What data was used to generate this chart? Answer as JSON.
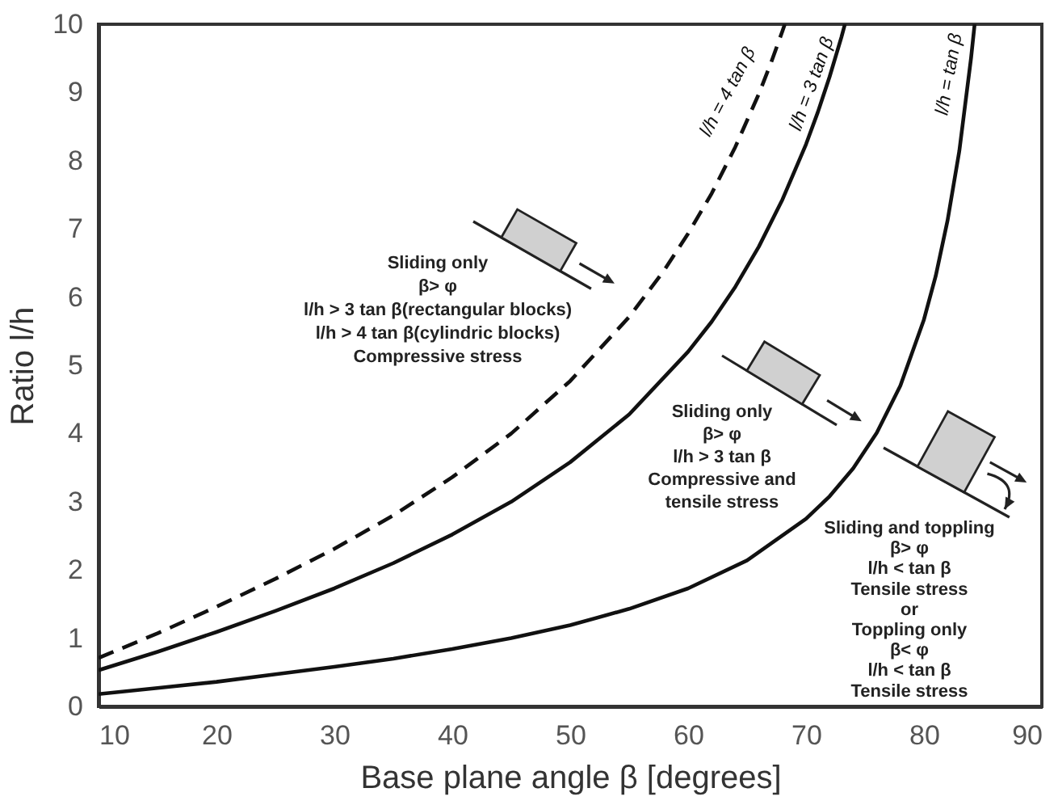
{
  "chart_data": {
    "type": "line",
    "xlabel": "Base plane angle β [degrees]",
    "ylabel": "Ratio l/h",
    "xlim": [
      10,
      90
    ],
    "ylim": [
      0,
      10
    ],
    "xticks": [
      10,
      20,
      30,
      40,
      50,
      60,
      70,
      80,
      90
    ],
    "yticks": [
      0,
      1,
      2,
      3,
      4,
      5,
      6,
      7,
      8,
      9,
      10
    ],
    "grid": false,
    "marker": "none",
    "series": [
      {
        "name": "l/h = tan β",
        "color": "#111111",
        "line_style": "solid",
        "x": [
          10,
          15,
          20,
          25,
          30,
          35,
          40,
          45,
          50,
          55,
          60,
          65,
          70,
          72,
          74,
          76,
          78,
          80,
          81,
          82,
          83,
          84,
          84.3
        ],
        "values": [
          0.18,
          0.27,
          0.36,
          0.47,
          0.58,
          0.7,
          0.84,
          1.0,
          1.19,
          1.43,
          1.73,
          2.14,
          2.75,
          3.08,
          3.49,
          4.01,
          4.7,
          5.67,
          6.31,
          7.12,
          8.14,
          9.51,
          10.0
        ]
      },
      {
        "name": "l/h = 3 tan β",
        "color": "#111111",
        "line_style": "solid",
        "x": [
          10,
          15,
          20,
          25,
          30,
          35,
          40,
          45,
          50,
          55,
          60,
          62,
          64,
          66,
          68,
          70,
          71,
          72,
          73,
          73.3
        ],
        "values": [
          0.53,
          0.8,
          1.09,
          1.4,
          1.73,
          2.1,
          2.52,
          3.0,
          3.58,
          4.28,
          5.2,
          5.64,
          6.15,
          6.74,
          7.43,
          8.24,
          8.71,
          9.23,
          9.81,
          10.0
        ]
      },
      {
        "name": "l/h = 4 tan β",
        "color": "#111111",
        "line_style": "dashed",
        "x": [
          10,
          15,
          20,
          25,
          30,
          35,
          40,
          45,
          50,
          55,
          58,
          60,
          62,
          64,
          66,
          67,
          68,
          68.2
        ],
        "values": [
          0.71,
          1.07,
          1.46,
          1.87,
          2.31,
          2.8,
          3.36,
          4.0,
          4.77,
          5.71,
          6.4,
          6.93,
          7.52,
          8.2,
          8.98,
          9.42,
          9.9,
          10.0
        ]
      }
    ],
    "annotations": [
      "Sliding only\nβ> φ\nl/h > 3 tan β(rectangular blocks)\nl/h > 4 tan β(cylindric blocks)\nCompressive stress",
      "Sliding only\nβ> φ\nl/h > 3 tan β\nCompressive and\ntensile stress",
      "Sliding and toppling\nβ> φ\nl/h < tan β\nTensile stress\nor\nToppling only\nβ< φ\nl/h < tan β\nTensile stress"
    ]
  }
}
